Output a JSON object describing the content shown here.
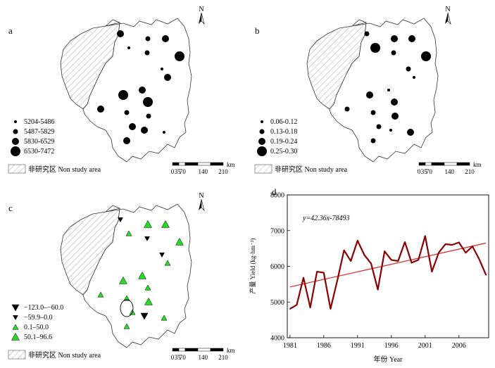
{
  "panels": {
    "a": {
      "label": "a",
      "legend": [
        "5204-5486",
        "5487-5829",
        "5830-6529",
        "6530-7472"
      ],
      "non_study": "非研究区 Non study area",
      "north": "N",
      "scale": {
        "ticks": [
          "0",
          "35",
          "70",
          "140",
          "210"
        ],
        "unit": "km"
      },
      "stations": [
        {
          "cls": 3
        },
        {
          "cls": 1
        },
        {
          "cls": 2
        },
        {
          "cls": 3
        },
        {
          "cls": 2
        },
        {
          "cls": 4
        },
        {
          "cls": 1
        },
        {
          "cls": 3
        },
        {
          "cls": 4
        },
        {
          "cls": 3
        },
        {
          "cls": 4
        },
        {
          "cls": 3
        },
        {
          "cls": 2
        },
        {
          "cls": 3
        },
        {
          "cls": 2
        },
        {
          "cls": 3
        },
        {
          "cls": 3
        },
        {
          "cls": 1
        }
      ]
    },
    "b": {
      "label": "b",
      "legend": [
        "0.06-0.12",
        "0.13-0.18",
        "0.19-0.24",
        "0.25-0.30"
      ],
      "non_study": "非研究区 Non study area",
      "north": "N",
      "scale": {
        "ticks": [
          "0",
          "35",
          "70",
          "140",
          "210"
        ],
        "unit": "km"
      },
      "stations": [
        {
          "cls": 2
        },
        {
          "cls": 4
        },
        {
          "cls": 3
        },
        {
          "cls": 3
        },
        {
          "cls": 2
        },
        {
          "cls": 4
        },
        {
          "cls": 2
        },
        {
          "cls": 1
        },
        {
          "cls": 3
        },
        {
          "cls": 1
        },
        {
          "cls": 3
        },
        {
          "cls": 2
        },
        {
          "cls": 2
        },
        {
          "cls": 2
        },
        {
          "cls": 3
        },
        {
          "cls": 1
        },
        {
          "cls": 2
        },
        {
          "cls": 3
        }
      ]
    },
    "c": {
      "label": "c",
      "legend": [
        "−123.0–−60.0",
        "−59.9–0.0",
        "0.1–50.0",
        "50.1–96.6"
      ],
      "non_study": "非研究区 Non study area",
      "north": "N",
      "scale": {
        "ticks": [
          "0",
          "35",
          "70",
          "140",
          "210"
        ],
        "unit": "km"
      },
      "stations": [
        {
          "cls": 2
        },
        {
          "cls": 3
        },
        {
          "cls": 4
        },
        {
          "cls": 4
        },
        {
          "cls": 2
        },
        {
          "cls": 4
        },
        {
          "cls": 2
        },
        {
          "cls": 3
        },
        {
          "cls": 4
        },
        {
          "cls": 4
        },
        {
          "cls": 3
        },
        {
          "cls": 3
        },
        {
          "cls": 3
        },
        {
          "cls": 3
        },
        {
          "cls": 4
        },
        {
          "cls": 1
        },
        {
          "cls": 3
        },
        {
          "cls": 3
        }
      ]
    }
  },
  "colors": {
    "triangle_fill": "#22dd22",
    "line": "#8b0000",
    "trend": "#dd2222"
  },
  "chart_data": {
    "type": "line",
    "label": "d",
    "xlabel": "年份 Year",
    "ylabel": "产量 Yield (kg·hm⁻²)",
    "annotation": "y=42.36x-78493",
    "xlim": [
      1981,
      2010
    ],
    "ylim": [
      4000,
      8000
    ],
    "xticks": [
      1981,
      1986,
      1991,
      1996,
      2001,
      2006
    ],
    "yticks": [
      4000,
      5000,
      6000,
      7000,
      8000
    ],
    "x": [
      1981,
      1982,
      1983,
      1984,
      1985,
      1986,
      1987,
      1988,
      1989,
      1990,
      1991,
      1992,
      1993,
      1994,
      1995,
      1996,
      1997,
      1998,
      1999,
      2000,
      2001,
      2002,
      2003,
      2004,
      2005,
      2006,
      2007,
      2008,
      2009,
      2010
    ],
    "series": [
      {
        "values": [
          4810,
          4920,
          5680,
          4850,
          5850,
          5820,
          4810,
          5600,
          6450,
          6150,
          6720,
          6320,
          6080,
          5350,
          6420,
          6180,
          6150,
          6680,
          6100,
          6180,
          6850,
          5850,
          6380,
          6620,
          6600,
          6670,
          6380,
          6560,
          6200,
          5760
        ]
      }
    ],
    "trend": {
      "slope": 42.36,
      "intercept": -78493
    }
  }
}
